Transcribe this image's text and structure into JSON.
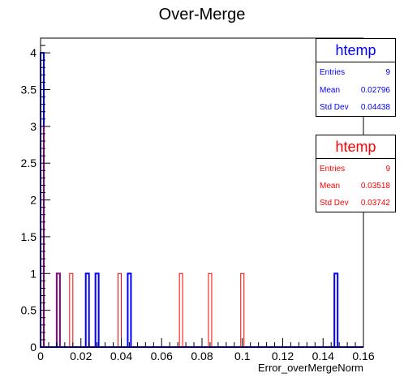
{
  "chart_data": {
    "type": "histogram",
    "title": "Over-Merge",
    "xlabel": "Error_overMergeNorm",
    "ylabel": "",
    "xlim": [
      0,
      0.16
    ],
    "ylim": [
      0,
      4.2
    ],
    "xticks": [
      "0",
      "0.02",
      "0.04",
      "0.06",
      "0.08",
      "0.1",
      "0.12",
      "0.14",
      "0.16"
    ],
    "yticks": [
      "0",
      "0.5",
      "1",
      "1.5",
      "2",
      "2.5",
      "3",
      "3.5",
      "4"
    ],
    "bin_width": 0.0016,
    "series": [
      {
        "name": "htemp",
        "color": "#0000ff",
        "bins": [
          {
            "x0": 0.0,
            "count": 4
          },
          {
            "x0": 0.008,
            "count": 1
          },
          {
            "x0": 0.0224,
            "count": 1
          },
          {
            "x0": 0.0272,
            "count": 1
          },
          {
            "x0": 0.0432,
            "count": 1
          },
          {
            "x0": 0.1456,
            "count": 1
          }
        ],
        "stats": {
          "entries": "9",
          "mean": "0.02796",
          "std_dev": "0.04438"
        }
      },
      {
        "name": "htemp",
        "color": "#ff0000",
        "bins": [
          {
            "x0": 0.0,
            "count": 3
          },
          {
            "x0": 0.008,
            "count": 1
          },
          {
            "x0": 0.0144,
            "count": 1
          },
          {
            "x0": 0.0384,
            "count": 1
          },
          {
            "x0": 0.0688,
            "count": 1
          },
          {
            "x0": 0.0832,
            "count": 1
          },
          {
            "x0": 0.0992,
            "count": 1
          }
        ],
        "stats": {
          "entries": "9",
          "mean": "0.03518",
          "std_dev": "0.03742"
        }
      }
    ]
  },
  "stat_labels": {
    "entries": "Entries",
    "mean": "Mean",
    "std_dev": "Std Dev"
  }
}
